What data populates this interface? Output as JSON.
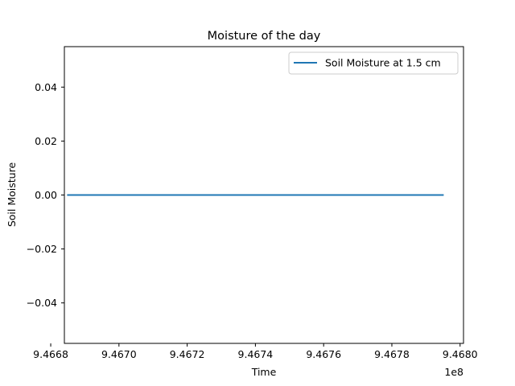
{
  "chart_data": {
    "type": "line",
    "title": "Moisture of the day",
    "xlabel": "Time",
    "ylabel": "Soil Moisture",
    "x_offset_label": "1e8",
    "xlim": [
      9.46684,
      9.46801
    ],
    "ylim": [
      -0.055,
      0.055
    ],
    "x_ticks": [
      9.4668,
      9.467,
      9.4672,
      9.4674,
      9.4676,
      9.4678,
      9.468
    ],
    "x_tick_labels": [
      "9.4668",
      "9.4670",
      "9.4672",
      "9.4674",
      "9.4676",
      "9.4678",
      "9.4680"
    ],
    "y_ticks": [
      0.04,
      0.02,
      0.0,
      -0.02,
      -0.04
    ],
    "y_tick_labels": [
      "0.04",
      "0.02",
      "0.00",
      "−0.02",
      "−0.04"
    ],
    "grid": false,
    "legend_position": "top-right",
    "series": [
      {
        "name": "Soil Moisture at 1.5 cm",
        "color": "#1f77b4",
        "x": [
          9.466848,
          9.467952
        ],
        "y": [
          0.0,
          0.0
        ]
      }
    ]
  }
}
